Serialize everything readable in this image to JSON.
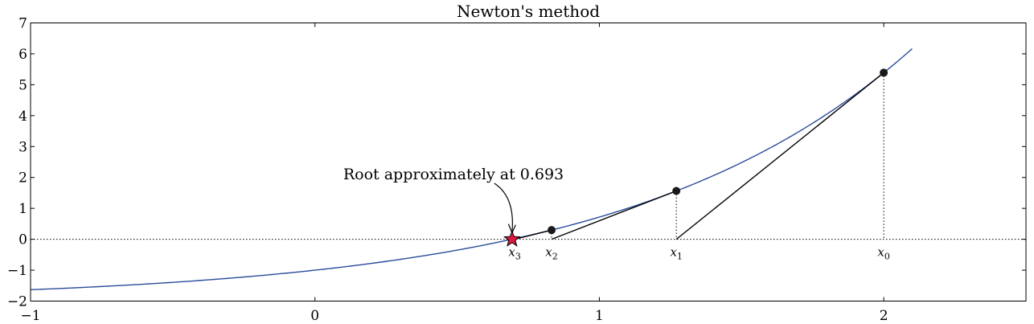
{
  "chart_data": {
    "type": "line",
    "title": "Newton's method",
    "xlabel": "",
    "ylabel": "",
    "xlim": [
      -1,
      2.5
    ],
    "ylim": [
      -2,
      7
    ],
    "x_ticks": [
      -1,
      0,
      1,
      2
    ],
    "y_ticks": [
      -2,
      -1,
      0,
      1,
      2,
      3,
      4,
      5,
      6,
      7
    ],
    "x_tick_labels": [
      "−1",
      "0",
      "1",
      "2"
    ],
    "y_tick_labels": [
      "−2",
      "−1",
      "0",
      "1",
      "2",
      "3",
      "4",
      "5",
      "6",
      "7"
    ],
    "grid": false,
    "legend": "none",
    "curve": {
      "function": "exp(x) - 2",
      "x_range": [
        -1,
        2.1
      ],
      "color": "#2a4c9c"
    },
    "iterates": [
      {
        "label": "x₀",
        "sub": "0",
        "x": 2.0,
        "y": 5.389
      },
      {
        "label": "x₁",
        "sub": "1",
        "x": 1.2707,
        "y": 1.563
      },
      {
        "label": "x₂",
        "sub": "2",
        "x": 0.832,
        "y": 0.298
      },
      {
        "label": "x₃",
        "sub": "3",
        "x": 0.7024,
        "y": 0.0
      }
    ],
    "root": 0.693,
    "annotation": {
      "text": "Root approximately at 0.693",
      "x": 0.693,
      "y": 0.0
    },
    "colors": {
      "curve": "#2a4c9c",
      "star": "#e0193f",
      "points": "#1a1a1a",
      "tangent": "#000000"
    }
  }
}
